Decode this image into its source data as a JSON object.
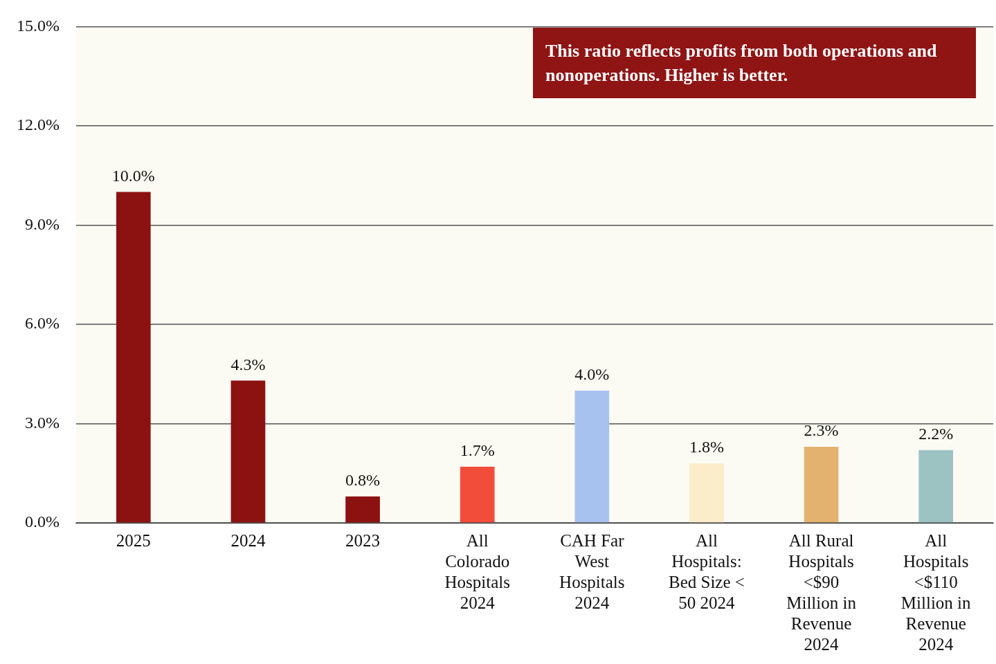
{
  "chart_data": {
    "type": "bar",
    "categories": [
      "2025",
      "2024",
      "2023",
      "All Colorado Hospitals 2024",
      "CAH Far West Hospitals 2024",
      "All Hospitals: Bed Size < 50 2024",
      "All Rural Hospitals <$90 Million in Revenue 2024",
      "All Hospitals <$110 Million in Revenue 2024"
    ],
    "values": [
      10.0,
      4.3,
      0.8,
      1.7,
      4.0,
      1.8,
      2.3,
      2.2
    ],
    "value_labels": [
      "10.0%",
      "4.3%",
      "0.8%",
      "1.7%",
      "4.0%",
      "1.8%",
      "2.3%",
      "2.2%"
    ],
    "colors": [
      "#8c1212",
      "#8c1212",
      "#8c1212",
      "#f24c3a",
      "#a8c2f0",
      "#fbecca",
      "#e2b26e",
      "#9cc3c2"
    ],
    "ylim": [
      0,
      15
    ],
    "yticks": [
      {
        "value": 0,
        "label": "0.0%"
      },
      {
        "value": 3,
        "label": "3.0%"
      },
      {
        "value": 6,
        "label": "6.0%"
      },
      {
        "value": 9,
        "label": "9.0%"
      },
      {
        "value": 12,
        "label": "12.0%"
      },
      {
        "value": 15,
        "label": "15.0%"
      }
    ],
    "grid": "y",
    "annotations": [
      "This ratio reflects profits from both operations and nonoperations. Higher is better."
    ]
  }
}
